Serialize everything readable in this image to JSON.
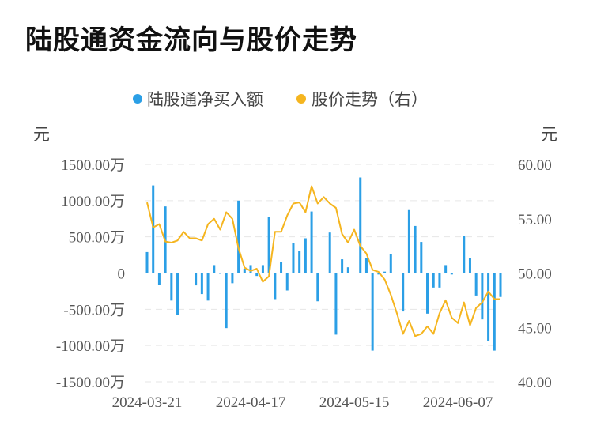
{
  "title": "陆股通资金流向与股价走势",
  "chart_data": {
    "type": "bar+line",
    "legend": [
      {
        "name": "陆股通净买入额",
        "color": "#2b9fe6"
      },
      {
        "name": "股价走势（右）",
        "color": "#f5b51f"
      }
    ],
    "y_left_unit": "元",
    "y_right_unit": "元",
    "y_left_ticks": [
      "1500.00万",
      "1000.00万",
      "500.00万",
      "0",
      "-500.00万",
      "-1000.00万",
      "-1500.00万"
    ],
    "y_left_range": [
      -1500,
      1500
    ],
    "y_right_ticks": [
      "60.00",
      "55.00",
      "50.00",
      "45.00",
      "40.00"
    ],
    "y_right_range": [
      40,
      60
    ],
    "x_ticks": [
      {
        "label": "2024-03-21",
        "index": 0
      },
      {
        "label": "2024-04-17",
        "index": 17
      },
      {
        "label": "2024-05-15",
        "index": 34
      },
      {
        "label": "2024-06-07",
        "index": 51
      }
    ],
    "grid": "horizontal-dashed",
    "net_buy_wan": [
      290,
      1210,
      -160,
      920,
      -380,
      -580,
      0,
      0,
      -170,
      -290,
      -380,
      110,
      -10,
      -760,
      -140,
      1000,
      60,
      110,
      -40,
      110,
      770,
      -360,
      150,
      -240,
      410,
      300,
      480,
      850,
      -390,
      0,
      560,
      -850,
      190,
      80,
      0,
      1320,
      210,
      -1070,
      -20,
      20,
      260,
      0,
      -530,
      870,
      650,
      430,
      -560,
      -200,
      -200,
      110,
      -20,
      0,
      510,
      210,
      -310,
      -640,
      -940,
      -1070,
      -330
    ],
    "price": [
      56.5,
      54.2,
      54.5,
      52.9,
      52.8,
      53.0,
      53.8,
      53.2,
      53.2,
      53.0,
      54.5,
      55.0,
      54.0,
      55.6,
      55.0,
      52.3,
      50.5,
      50.2,
      50.4,
      49.2,
      49.7,
      53.8,
      53.8,
      55.3,
      56.4,
      56.5,
      55.6,
      58.0,
      56.4,
      57.0,
      56.4,
      56.0,
      53.6,
      52.8,
      54.0,
      52.5,
      51.8,
      50.3,
      50.1,
      49.4,
      48.0,
      46.3,
      44.4,
      45.6,
      44.2,
      44.4,
      45.1,
      44.4,
      46.3,
      47.5,
      45.9,
      45.4,
      47.3,
      45.2,
      46.8,
      47.3,
      48.3,
      47.6,
      47.6
    ]
  }
}
